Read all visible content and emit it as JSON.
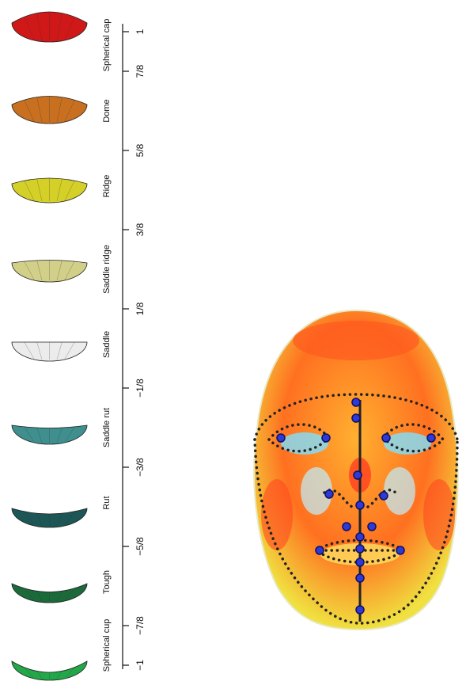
{
  "shapes": [
    {
      "label": "Spherical cap",
      "color": "#d01818"
    },
    {
      "label": "Dome",
      "color": "#c87020"
    },
    {
      "label": "Ridge",
      "color": "#d4d028"
    },
    {
      "label": "Saddle ridge",
      "color": "#d2d088"
    },
    {
      "label": "Saddle",
      "color": "#ececec"
    },
    {
      "label": "Saddle rut",
      "color": "#3f8f8f"
    },
    {
      "label": "Rut",
      "color": "#1c5656"
    },
    {
      "label": "Tough",
      "color": "#1a6a3a"
    },
    {
      "label": "Spherical cup",
      "color": "#22a848"
    }
  ],
  "scale": {
    "ticks": [
      {
        "value": 1,
        "label": "1"
      },
      {
        "value": 0.875,
        "label": "7/8"
      },
      {
        "value": 0.625,
        "label": "5/8"
      },
      {
        "value": 0.375,
        "label": "3/8"
      },
      {
        "value": 0.125,
        "label": "1/8"
      },
      {
        "value": -0.125,
        "label": "−1/8"
      },
      {
        "value": -0.375,
        "label": "−3/8"
      },
      {
        "value": -0.625,
        "label": "−5/8"
      },
      {
        "value": -0.875,
        "label": "−7/8"
      },
      {
        "value": -1,
        "label": "−1"
      }
    ]
  }
}
